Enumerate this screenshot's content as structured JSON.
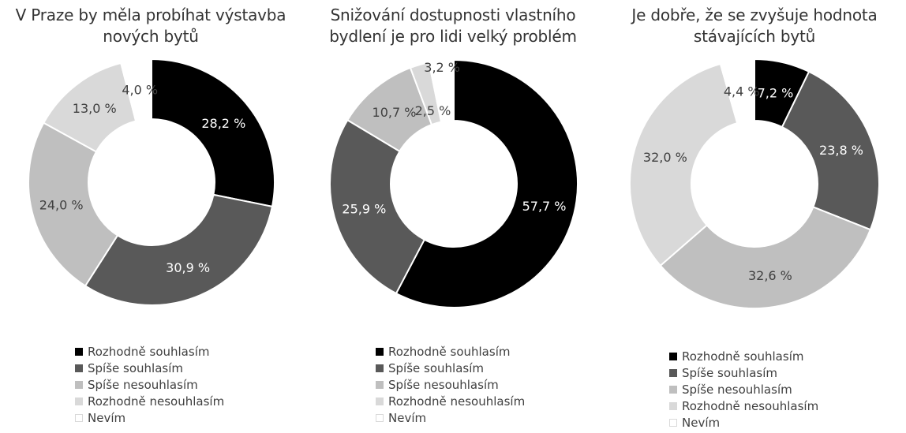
{
  "legend": {
    "labels": [
      "Rozhodně souhlasím",
      "Spíše souhlasím",
      "Spíše nesouhlasím",
      "Rozhodně nesouhlasím",
      "Nevím"
    ],
    "colors": [
      "#000000",
      "#595959",
      "#bfbfbf",
      "#d9d9d9",
      "#ffffff"
    ]
  },
  "chart_data": [
    {
      "type": "pie",
      "style": "donut",
      "title": "V Praze by měla probíhat výstavba nových bytů",
      "title_lines": [
        "V Praze by měla probíhat výstavba",
        "nových bytů"
      ],
      "categories": [
        "Rozhodně souhlasím",
        "Spíše souhlasím",
        "Spíše nesouhlasím",
        "Rozhodně nesouhlasím",
        "Nevím"
      ],
      "values": [
        28.2,
        30.9,
        24.0,
        13.0,
        4.0
      ],
      "value_labels": [
        "28,2 %",
        "30,9 %",
        "24,0 %",
        "13,0 %",
        "4,0 %"
      ],
      "legend_placement": "bottom"
    },
    {
      "type": "pie",
      "style": "donut",
      "title": "Snižování dostupnosti vlastního bydlení je pro lidi velký problém",
      "title_lines": [
        "Snižování dostupnosti vlastního",
        "bydlení je pro lidi velký problém"
      ],
      "categories": [
        "Rozhodně souhlasím",
        "Spíše souhlasím",
        "Spíše nesouhlasím",
        "Rozhodně nesouhlasím",
        "Nevím"
      ],
      "values": [
        57.7,
        25.9,
        10.7,
        2.5,
        3.2
      ],
      "value_labels": [
        "57,7 %",
        "25,9 %",
        "10,7 %",
        "2,5 %",
        "3,2 %"
      ],
      "legend_placement": "bottom"
    },
    {
      "type": "pie",
      "style": "donut",
      "title": "Je dobře, že se zvyšuje hodnota stávajících bytů",
      "title_lines": [
        "Je dobře, že se zvyšuje hodnota",
        "stávajících bytů"
      ],
      "categories": [
        "Rozhodně souhlasím",
        "Spíše souhlasím",
        "Spíše nesouhlasím",
        "Rozhodně nesouhlasím",
        "Nevím"
      ],
      "values": [
        7.2,
        23.8,
        32.6,
        32.0,
        4.4
      ],
      "value_labels": [
        "7,2 %",
        "23,8 %",
        "32,6 %",
        "32,0 %",
        "4,4 %"
      ],
      "legend_placement": "bottom"
    }
  ]
}
